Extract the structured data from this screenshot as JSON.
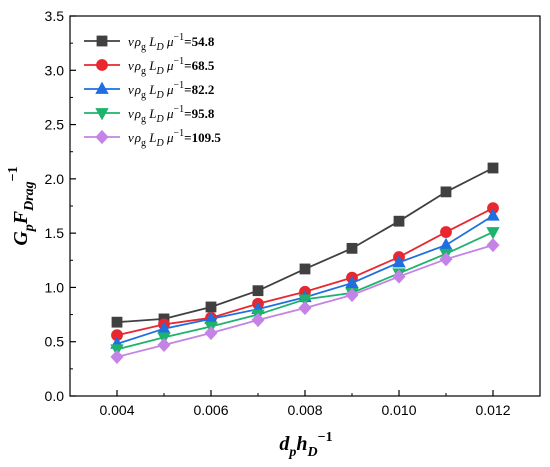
{
  "chart_data": {
    "type": "line",
    "title": "",
    "xlabel": "",
    "ylabel": "",
    "xlim": [
      0.003,
      0.013
    ],
    "ylim": [
      0,
      3.5
    ],
    "x_ticks": [
      "0.004",
      "0.006",
      "0.008",
      "0.010",
      "0.012"
    ],
    "y_ticks": [
      "0.0",
      "0.5",
      "1.0",
      "1.5",
      "2.0",
      "2.5",
      "3.0",
      "3.5"
    ],
    "x": [
      0.004,
      0.005,
      0.006,
      0.007,
      0.008,
      0.009,
      0.01,
      0.011,
      0.012
    ],
    "grid": false,
    "legend_position": "top-left",
    "series": [
      {
        "name": "=54.8",
        "color": "#404040",
        "marker": "square",
        "values": [
          0.68,
          0.71,
          0.82,
          0.97,
          1.17,
          1.36,
          1.61,
          1.88,
          2.1
        ]
      },
      {
        "name": "=68.5",
        "color": "#e8272f",
        "marker": "circle",
        "values": [
          0.56,
          0.66,
          0.72,
          0.85,
          0.96,
          1.09,
          1.28,
          1.51,
          1.73
        ]
      },
      {
        "name": "=82.2",
        "color": "#1f6fe0",
        "marker": "triangle-up",
        "values": [
          0.48,
          0.62,
          0.71,
          0.8,
          0.91,
          1.04,
          1.23,
          1.39,
          1.66
        ]
      },
      {
        "name": "=95.8",
        "color": "#1db36b",
        "marker": "triangle-down",
        "values": [
          0.43,
          0.54,
          0.64,
          0.75,
          0.89,
          0.95,
          1.13,
          1.31,
          1.51
        ]
      },
      {
        "name": "=109.5",
        "color": "#c483e6",
        "marker": "diamond",
        "values": [
          0.36,
          0.47,
          0.58,
          0.7,
          0.81,
          0.93,
          1.1,
          1.26,
          1.39
        ]
      }
    ]
  }
}
